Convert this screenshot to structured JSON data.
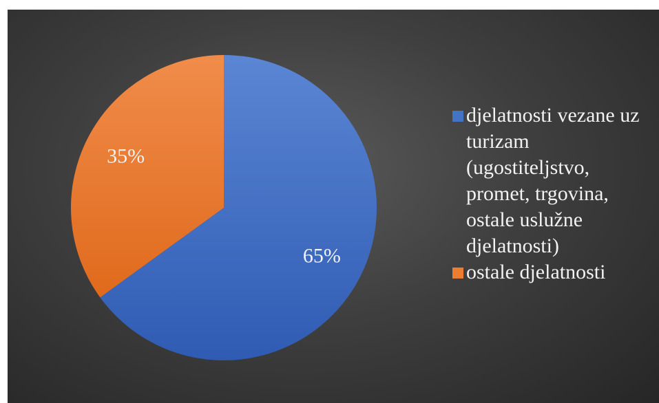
{
  "chart_data": {
    "type": "pie",
    "title": "",
    "categories": [
      "djelatnosti vezane uz turizam (ugostiteljstvo, promet, trgovina, ostale uslužne djelatnosti)",
      "ostale djelatnosti"
    ],
    "values": [
      65,
      35
    ],
    "data_labels": [
      "65%",
      "35%"
    ],
    "colors": [
      "#4472C4",
      "#ED7D31"
    ],
    "legend_position": "right",
    "background": "dark-gradient"
  }
}
